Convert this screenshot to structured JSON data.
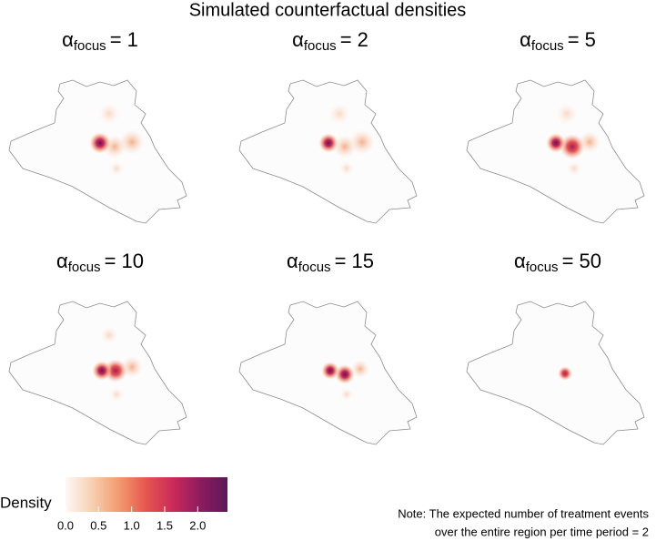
{
  "chart_data": {
    "type": "density-map-grid",
    "title": "Simulated counterfactual densities",
    "panels": [
      {
        "symbol": "α",
        "subscript": "focus",
        "label": "= 1"
      },
      {
        "symbol": "α",
        "subscript": "focus",
        "label": "= 2"
      },
      {
        "symbol": "α",
        "subscript": "focus",
        "label": "= 5"
      },
      {
        "symbol": "α",
        "subscript": "focus",
        "label": "= 10"
      },
      {
        "symbol": "α",
        "subscript": "focus",
        "label": "= 15"
      },
      {
        "symbol": "α",
        "subscript": "focus",
        "label": "= 50"
      }
    ],
    "colorbar": {
      "title": "Density",
      "lim": [
        0,
        2.45
      ],
      "ticks": [
        {
          "value": 0,
          "label": "0.0"
        },
        {
          "value": 0.5,
          "label": "0.5"
        },
        {
          "value": 1,
          "label": "1.0"
        },
        {
          "value": 1.5,
          "label": "1.5"
        },
        {
          "value": 2,
          "label": "2.0"
        }
      ],
      "colormap": [
        "#fdf8f5",
        "#f7cfb2",
        "#f19a6c",
        "#e5554f",
        "#c92a5a",
        "#8c1c5e",
        "#5c1858"
      ]
    },
    "note": [
      "Note: The expected number of treatment events",
      "over the entire region per time period = 2"
    ]
  }
}
